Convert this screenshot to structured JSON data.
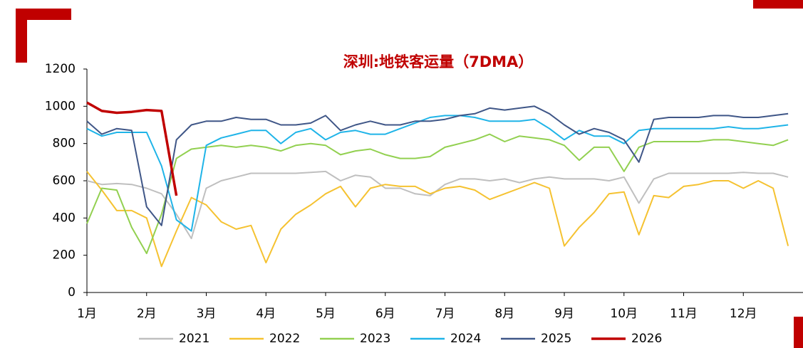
{
  "chart_data": {
    "type": "line",
    "title": "深圳:地铁客运量（7DMA）",
    "categories": [
      "1月",
      null,
      null,
      null,
      "2月",
      null,
      null,
      null,
      "3月",
      null,
      null,
      null,
      "4月",
      null,
      null,
      null,
      "5月",
      null,
      null,
      null,
      "6月",
      null,
      null,
      null,
      "7月",
      null,
      null,
      null,
      "8月",
      null,
      null,
      null,
      "9月",
      null,
      null,
      null,
      "10月",
      null,
      null,
      null,
      "11月",
      null,
      null,
      null,
      "12月",
      null,
      null,
      null
    ],
    "ylim": [
      0,
      1200
    ],
    "yticks": [
      0,
      200,
      400,
      600,
      800,
      1000,
      1200
    ],
    "legend": "bottom",
    "series": [
      {
        "name": "2021",
        "color": "#bfbfbf",
        "values": [
          600,
          580,
          585,
          580,
          560,
          530,
          420,
          290,
          560,
          600,
          620,
          640,
          640,
          640,
          640,
          645,
          650,
          600,
          630,
          620,
          560,
          560,
          530,
          520,
          580,
          610,
          610,
          600,
          610,
          590,
          610,
          620,
          610,
          610,
          610,
          600,
          620,
          480,
          610,
          640,
          640,
          640,
          640,
          640,
          645,
          640,
          640,
          620
        ]
      },
      {
        "name": "2022",
        "color": "#f5c231",
        "values": [
          650,
          550,
          440,
          440,
          400,
          140,
          330,
          510,
          470,
          380,
          340,
          360,
          160,
          340,
          420,
          470,
          530,
          570,
          460,
          560,
          580,
          570,
          570,
          530,
          560,
          570,
          550,
          500,
          530,
          560,
          590,
          560,
          250,
          350,
          430,
          530,
          540,
          310,
          520,
          510,
          570,
          580,
          600,
          600,
          560,
          600,
          560,
          250
        ]
      },
      {
        "name": "2023",
        "color": "#92d050",
        "values": [
          370,
          560,
          550,
          350,
          210,
          420,
          720,
          770,
          780,
          790,
          780,
          790,
          780,
          760,
          790,
          800,
          790,
          740,
          760,
          770,
          740,
          720,
          720,
          730,
          780,
          800,
          820,
          850,
          810,
          840,
          830,
          820,
          790,
          710,
          780,
          780,
          650,
          780,
          810,
          810,
          810,
          810,
          820,
          820,
          810,
          800,
          790,
          820
        ]
      },
      {
        "name": "2024",
        "color": "#1fb4e8",
        "values": [
          880,
          840,
          860,
          860,
          860,
          680,
          390,
          330,
          790,
          830,
          850,
          870,
          870,
          800,
          860,
          880,
          820,
          860,
          870,
          850,
          850,
          880,
          910,
          940,
          950,
          950,
          940,
          920,
          920,
          920,
          930,
          880,
          820,
          870,
          840,
          840,
          800,
          870,
          880,
          880,
          880,
          880,
          880,
          890,
          880,
          880,
          890,
          900
        ]
      },
      {
        "name": "2025",
        "color": "#3f5687",
        "values": [
          920,
          850,
          880,
          870,
          460,
          360,
          820,
          900,
          920,
          920,
          940,
          930,
          930,
          900,
          900,
          910,
          950,
          870,
          900,
          920,
          900,
          900,
          920,
          920,
          930,
          950,
          960,
          990,
          980,
          990,
          1000,
          960,
          900,
          850,
          880,
          860,
          820,
          700,
          930,
          940,
          940,
          940,
          950,
          950,
          940,
          940,
          950,
          960
        ]
      },
      {
        "name": "2026",
        "color": "#c00000",
        "values": [
          1020,
          975,
          965,
          970,
          980,
          975,
          520,
          null,
          null,
          null,
          null,
          null,
          null,
          null,
          null,
          null,
          null,
          null,
          null,
          null,
          null,
          null,
          null,
          null,
          null,
          null,
          null,
          null,
          null,
          null,
          null,
          null,
          null,
          null,
          null,
          null,
          null,
          null,
          null,
          null,
          null,
          null,
          null,
          null,
          null,
          null,
          null,
          null
        ]
      }
    ]
  }
}
